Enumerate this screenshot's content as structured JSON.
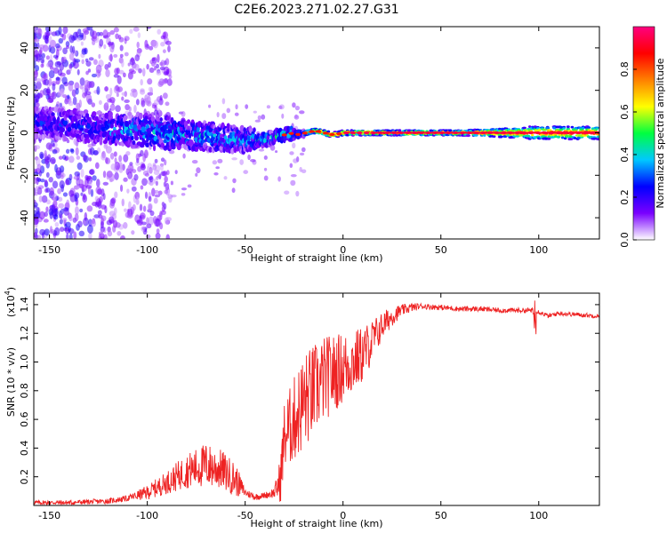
{
  "title": "C2E6.2023.271.02.27.G31",
  "spectrogram": {
    "type": "heatmap",
    "xlabel": "Height of straight line (km)",
    "ylabel": "Frequency (Hz)",
    "xlim": [
      -158,
      131
    ],
    "ylim": [
      -50,
      50
    ],
    "xticks": [
      "-150",
      "-100",
      "-50",
      "0",
      "50",
      "100"
    ],
    "xtick_values": [
      -150,
      -100,
      -50,
      0,
      50,
      100
    ],
    "yticks": [
      "40",
      "20",
      "0",
      "-20",
      "-40"
    ],
    "ytick_values": [
      40,
      20,
      0,
      -20,
      -40
    ],
    "colorbar": {
      "label": "Normalized spectral amplitude",
      "range": [
        0,
        1
      ],
      "ticks": [
        "0.0",
        "0.2",
        "0.4",
        "0.6",
        "0.8"
      ],
      "tick_values": [
        0.0,
        0.2,
        0.4,
        0.6,
        0.8
      ],
      "colormap": "rainbow",
      "stops": [
        "#ffffff",
        "#7a00ff",
        "#0000ff",
        "#00c8ff",
        "#00ff40",
        "#ffff00",
        "#ff8000",
        "#ff0000",
        "#ff0080"
      ]
    }
  },
  "snr": {
    "type": "line",
    "xlabel": "Height of straight line (km)",
    "ylabel": "SNR (10 * v/v)",
    "yscale_label": "(x10",
    "yscale_exp": "4",
    "yscale_close": ")",
    "xlim": [
      -158,
      131
    ],
    "ylim": [
      0,
      1.48
    ],
    "xticks": [
      "-150",
      "-100",
      "-50",
      "0",
      "50",
      "100"
    ],
    "xtick_values": [
      -150,
      -100,
      -50,
      0,
      50,
      100
    ],
    "yticks": [
      "0.2",
      "0.4",
      "0.6",
      "0.8",
      "1.0",
      "1.2",
      "1.4"
    ],
    "ytick_values": [
      0.2,
      0.4,
      0.6,
      0.8,
      1.0,
      1.2,
      1.4
    ],
    "line_color": "#ee2222",
    "envelope": {
      "x": [
        -158,
        -140,
        -120,
        -110,
        -100,
        -90,
        -80,
        -70,
        -62,
        -55,
        -50,
        -45,
        -40,
        -35,
        -32,
        -30,
        -25,
        -20,
        -15,
        -10,
        -5,
        0,
        5,
        10,
        15,
        20,
        25,
        30,
        35,
        40,
        50,
        60,
        70,
        80,
        90,
        97,
        100,
        105,
        110,
        120,
        131
      ],
      "y": [
        0.02,
        0.02,
        0.03,
        0.05,
        0.09,
        0.16,
        0.24,
        0.28,
        0.25,
        0.18,
        0.09,
        0.06,
        0.07,
        0.09,
        0.18,
        0.48,
        0.6,
        0.72,
        0.8,
        0.88,
        0.92,
        0.96,
        1.0,
        1.05,
        1.15,
        1.25,
        1.32,
        1.36,
        1.38,
        1.39,
        1.38,
        1.37,
        1.37,
        1.36,
        1.36,
        1.36,
        1.35,
        1.32,
        1.34,
        1.33,
        1.32
      ]
    },
    "noise_amplitude": {
      "x": [
        -158,
        -110,
        -90,
        -70,
        -55,
        -50,
        -40,
        -35,
        -30,
        -20,
        -10,
        0,
        10,
        20,
        30,
        40,
        131
      ],
      "y": [
        0.015,
        0.02,
        0.08,
        0.16,
        0.12,
        0.03,
        0.02,
        0.04,
        0.25,
        0.35,
        0.3,
        0.25,
        0.2,
        0.1,
        0.04,
        0.02,
        0.015
      ]
    }
  }
}
